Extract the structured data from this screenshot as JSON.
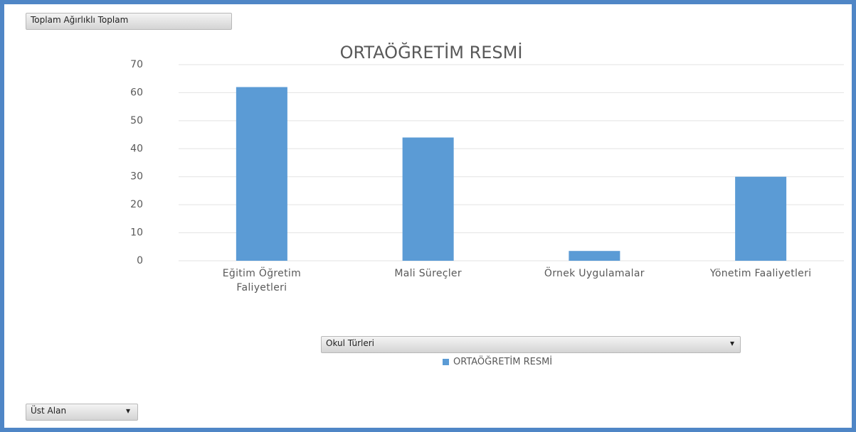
{
  "chart_data": {
    "type": "bar",
    "title": "ORTAÖĞRETİM RESMİ",
    "categories": [
      "Eğitim Öğretim Faliyetleri",
      "Mali Süreçler",
      "Örnek Uygulamalar",
      "Yönetim Faaliyetleri"
    ],
    "series": [
      {
        "name": "ORTAÖĞRETİM RESMİ",
        "color": "#5b9bd5",
        "values": [
          62,
          44,
          3.5,
          30
        ]
      }
    ],
    "ylim": [
      0,
      70
    ],
    "yticks": [
      0,
      10,
      20,
      30,
      40,
      50,
      60,
      70
    ],
    "grid": true,
    "field_buttons": {
      "values": "Toplam Ağırlıklı Toplam",
      "legend": "Okul Türleri",
      "filter": "Üst Alan"
    }
  }
}
